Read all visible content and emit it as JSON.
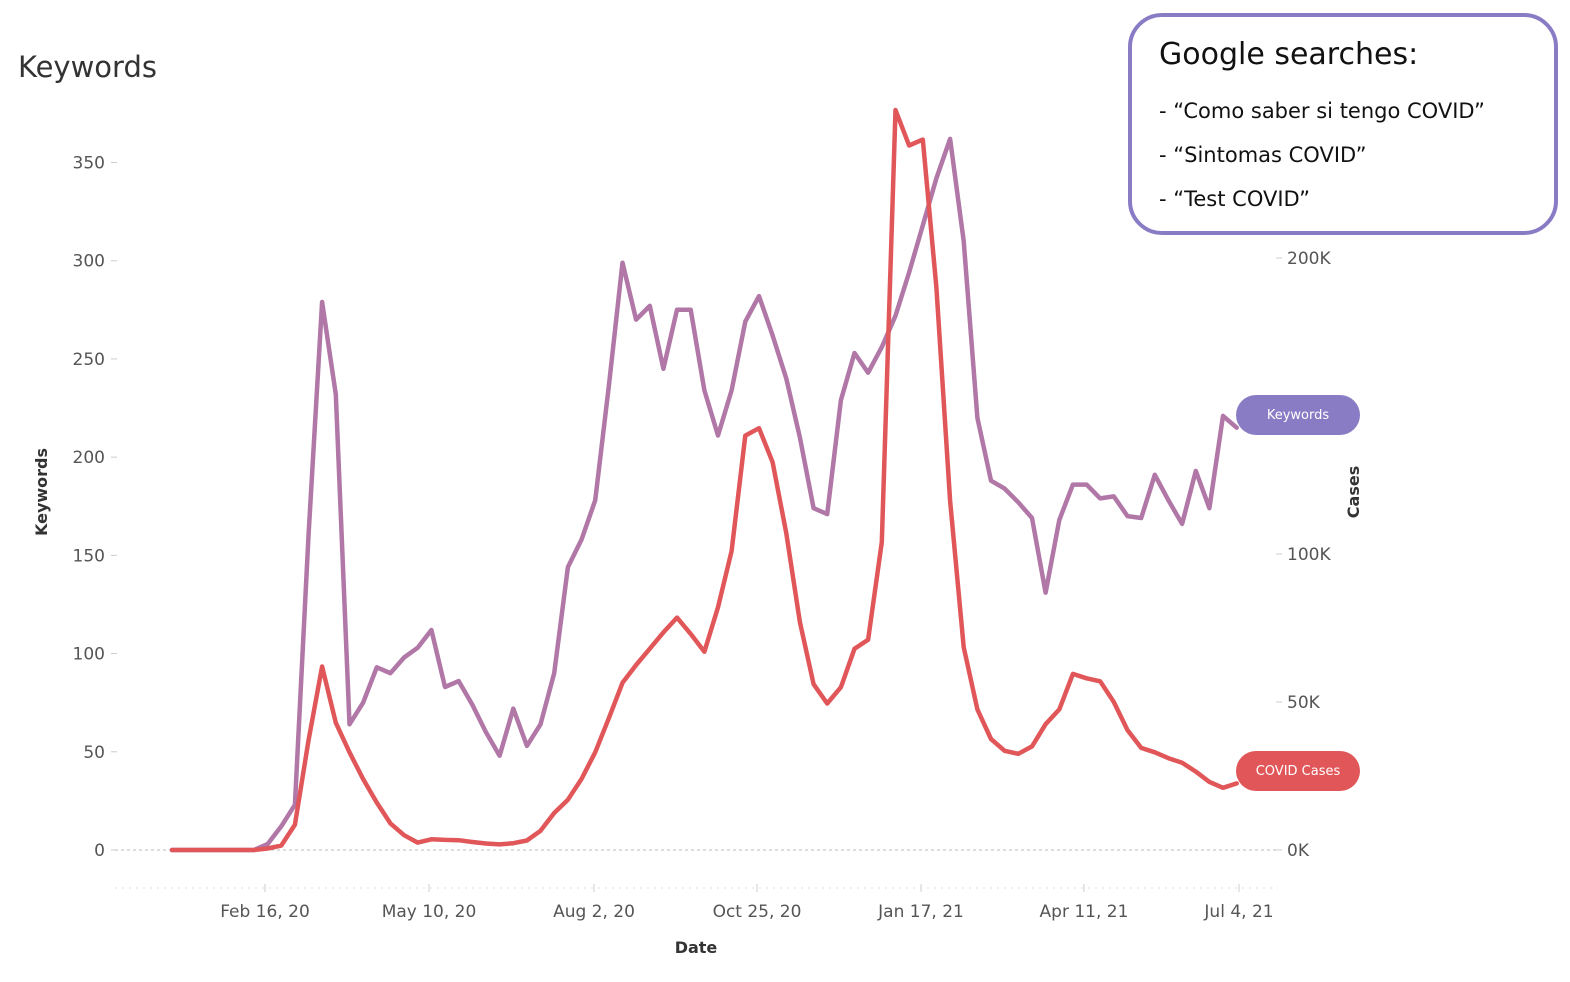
{
  "title": "Keywords",
  "callout": {
    "title": "Google searches:",
    "items": [
      "- “Como saber si tengo COVID”",
      "- “Sintomas COVID”",
      "- “Test COVID”"
    ],
    "border_color": "#8a7cc4"
  },
  "legend": {
    "keywords_label": "Keywords",
    "cases_label": "COVID Cases",
    "keywords_color": "#8a7cc4",
    "cases_color": "#e15759"
  },
  "chart_data": {
    "type": "line",
    "xlabel": "Date",
    "ylabel": "Keywords",
    "y2label": "Cases",
    "x_tick_labels": [
      "Feb 16, 20",
      "May 10, 20",
      "Aug 2, 20",
      "Oct 25, 20",
      "Jan 17, 21",
      "Apr 11, 21",
      "Jul 4, 21"
    ],
    "y_ticks": [
      "0",
      "50",
      "100",
      "150",
      "200",
      "250",
      "300",
      "350"
    ],
    "y2_ticks": [
      "0K",
      "50K",
      "100K",
      "200K"
    ],
    "ylim": [
      0,
      365
    ],
    "y2lim": [
      0,
      240000
    ],
    "grid": false,
    "baseline_dashed": true,
    "series": [
      {
        "name": "Keywords",
        "axis": "left",
        "color": "#b077a7",
        "values": [
          0,
          0,
          0,
          0,
          0,
          0,
          0,
          3,
          12,
          23,
          160,
          279,
          232,
          64,
          75,
          93,
          90,
          98,
          103,
          112,
          83,
          86,
          74,
          60,
          48,
          72,
          53,
          64,
          90,
          144,
          158,
          178,
          236,
          299,
          270,
          277,
          245,
          275,
          275,
          234,
          211,
          234,
          269,
          282,
          262,
          240,
          210,
          174,
          171,
          229,
          253,
          243,
          256,
          272,
          294,
          318,
          342,
          362,
          310,
          220,
          188,
          184,
          177,
          169,
          131,
          168,
          186,
          186,
          179,
          180,
          170,
          169,
          191,
          178,
          166,
          193,
          174,
          221,
          215
        ]
      },
      {
        "name": "COVID Cases",
        "axis": "right",
        "color": "#e15759",
        "values": [
          0,
          0,
          0,
          0,
          0,
          0,
          0,
          500,
          1500,
          8500,
          37000,
          62000,
          43000,
          33000,
          24000,
          16000,
          9000,
          5000,
          2500,
          3600,
          3400,
          3300,
          2700,
          2200,
          1900,
          2300,
          3200,
          6500,
          12500,
          17000,
          24000,
          33000,
          44500,
          56500,
          62500,
          68000,
          73500,
          78500,
          73000,
          67000,
          82000,
          101000,
          140000,
          142500,
          131000,
          107000,
          77000,
          56000,
          49500,
          55000,
          68000,
          71000,
          104000,
          250000,
          238000,
          240000,
          190000,
          118000,
          68500,
          47500,
          37500,
          33500,
          32500,
          35000,
          42500,
          47500,
          59500,
          58000,
          57000,
          50000,
          40500,
          34500,
          33000,
          31000,
          29500,
          26500,
          23000,
          21000,
          22500
        ]
      }
    ]
  }
}
